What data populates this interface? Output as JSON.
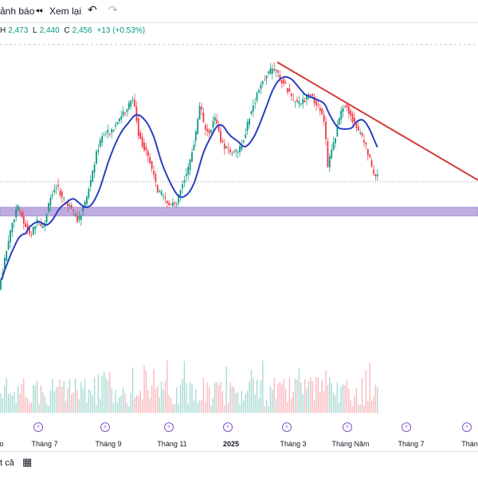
{
  "toolbar": {
    "alert_label": "ảnh báo",
    "replay_icon": "rewind-icon",
    "replay_label": "Xem lại",
    "undo_icon": "undo-icon",
    "redo_icon": "redo-icon"
  },
  "ohlc": {
    "high_label": "H",
    "high_value": "2,473",
    "low_label": "L",
    "low_value": "2,440",
    "close_label": "C",
    "close_value": "2,456",
    "change": "+13 (+0.53%)"
  },
  "x_axis_labels": [
    "o",
    "Tháng 7",
    "Tháng 9",
    "Tháng 11",
    "2025",
    "Tháng 3",
    "Tháng Năm",
    "Tháng 7",
    "Tháng"
  ],
  "bottom": {
    "all_label": "t cả",
    "calendar_icon": "calendar-icon"
  },
  "colors": {
    "up": "#089981",
    "down": "#f23645",
    "ma": "#2a3fbf",
    "trendline": "#d23b3b",
    "support_zone": "#b39ddb",
    "event_marker": "#7e57c2"
  },
  "chart_data": {
    "type": "candlestick",
    "moving_average": "blue line",
    "trendline": "descending red line from top-right",
    "support_zone": "purple horizontal band"
  }
}
